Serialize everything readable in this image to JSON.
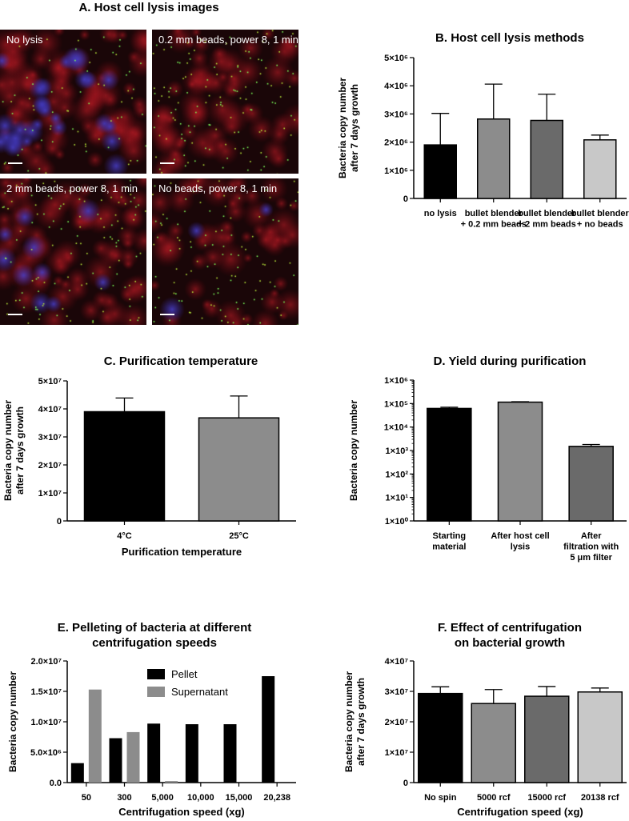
{
  "panelA": {
    "title": "A. Host cell lysis images",
    "images": [
      {
        "label": "No lysis",
        "nuclei": 28,
        "red": 80,
        "green": 70,
        "seed": 11
      },
      {
        "label": "0.2 mm beads, power 8, 1 min",
        "nuclei": 0,
        "red": 60,
        "green": 140,
        "seed": 23
      },
      {
        "label": "2 mm beads, power 8, 1 min",
        "nuclei": 10,
        "red": 70,
        "green": 120,
        "seed": 37
      },
      {
        "label": "No beads, power 8, 1 min",
        "nuclei": 3,
        "red": 55,
        "green": 110,
        "seed": 53
      }
    ]
  },
  "chart_data": [
    {
      "id": "B",
      "type": "bar",
      "title": "B. Host cell lysis methods",
      "ylabel": "Bacteria copy number after 7 days growth",
      "xlabel": "",
      "categories": [
        "no lysis",
        "bullet blender + 0.2 mm beads",
        "bullet blender + 2 mm beads",
        "bullet blender + no beads"
      ],
      "values": [
        1900000,
        2820000,
        2770000,
        2080000
      ],
      "errors": [
        1120000,
        1240000,
        930000,
        170000
      ],
      "colors": [
        "#000000",
        "#8c8c8c",
        "#6a6a6a",
        "#c8c8c8"
      ],
      "ylim": [
        0,
        5000000
      ],
      "yticks": [
        0,
        1000000,
        2000000,
        3000000,
        4000000,
        5000000
      ],
      "yticklabels": [
        "0",
        "1×10⁶",
        "2×10⁶",
        "3×10⁶",
        "4×10⁶",
        "5×10⁶"
      ],
      "grid": false
    },
    {
      "id": "C",
      "type": "bar",
      "title": "C. Purification temperature",
      "ylabel": "Bacteria copy number after 7 days growth",
      "xlabel": "Purification temperature",
      "categories": [
        "4°C",
        "25°C"
      ],
      "values": [
        39000000,
        36800000
      ],
      "errors": [
        4900000,
        7800000
      ],
      "colors": [
        "#000000",
        "#8c8c8c"
      ],
      "ylim": [
        0,
        50000000
      ],
      "yticks": [
        0,
        10000000,
        20000000,
        30000000,
        40000000,
        50000000
      ],
      "yticklabels": [
        "0",
        "1×10⁷",
        "2×10⁷",
        "3×10⁷",
        "4×10⁷",
        "5×10⁷"
      ],
      "grid": false
    },
    {
      "id": "D",
      "type": "bar",
      "title": "D. Yield during purification",
      "ylabel": "Bacteria copy number",
      "xlabel": "",
      "scale": "log",
      "categories": [
        "Starting material",
        "After host cell lysis",
        "After filtration with 5 μm filter"
      ],
      "values": [
        62000,
        115000,
        1500
      ],
      "errors": [
        8000,
        5000,
        300
      ],
      "colors": [
        "#000000",
        "#8c8c8c",
        "#6a6a6a"
      ],
      "ylim": [
        1,
        1000000
      ],
      "yticks": [
        1,
        10,
        100,
        1000,
        10000,
        100000,
        1000000
      ],
      "yticklabels": [
        "1×10⁰",
        "1×10¹",
        "1×10²",
        "1×10³",
        "1×10⁴",
        "1×10⁵",
        "1×10⁶"
      ],
      "grid": false
    },
    {
      "id": "E",
      "type": "bar",
      "title": "E. Pelleting of bacteria at different centrifugation speeds",
      "title_lines": [
        "E. Pelleting of bacteria at different",
        "centrifugation speeds"
      ],
      "ylabel": "Bacteria copy number",
      "xlabel": "Centrifugation speed (xg)",
      "categories": [
        "50",
        "300",
        "5,000",
        "10,000",
        "15,000",
        "20,238"
      ],
      "series": [
        {
          "name": "Pellet",
          "color": "#000000",
          "values": [
            3200000,
            7300000,
            9700000,
            9600000,
            9600000,
            17500000
          ]
        },
        {
          "name": "Supernatant",
          "color": "#8c8c8c",
          "values": [
            15300000,
            8300000,
            250000,
            0,
            0,
            0
          ]
        }
      ],
      "legend": "upper-middle",
      "ylim": [
        0,
        20000000
      ],
      "yticks": [
        0,
        5000000,
        10000000,
        15000000,
        20000000
      ],
      "yticklabels": [
        "0.0",
        "5.0×10⁶",
        "1.0×10⁷",
        "1.5×10⁷",
        "2.0×10⁷"
      ],
      "grid": false
    },
    {
      "id": "F",
      "type": "bar",
      "title": "F. Effect of centrifugation on bacterial growth",
      "title_lines": [
        "F. Effect of centrifugation",
        "on bacterial growth"
      ],
      "ylabel": "Bacteria copy number after 7 days growth",
      "xlabel": "Centrifugation speed (xg)",
      "categories": [
        "No spin",
        "5000 rcf",
        "15000 rcf",
        "20138 rcf"
      ],
      "values": [
        29300000,
        26000000,
        28400000,
        29800000
      ],
      "errors": [
        2200000,
        4600000,
        3200000,
        1300000
      ],
      "colors": [
        "#000000",
        "#8c8c8c",
        "#6a6a6a",
        "#c8c8c8"
      ],
      "ylim": [
        0,
        40000000
      ],
      "yticks": [
        0,
        10000000,
        20000000,
        30000000,
        40000000
      ],
      "yticklabels": [
        "0",
        "1×10⁷",
        "2×10⁷",
        "3×10⁷",
        "4×10⁷"
      ],
      "grid": false
    }
  ]
}
